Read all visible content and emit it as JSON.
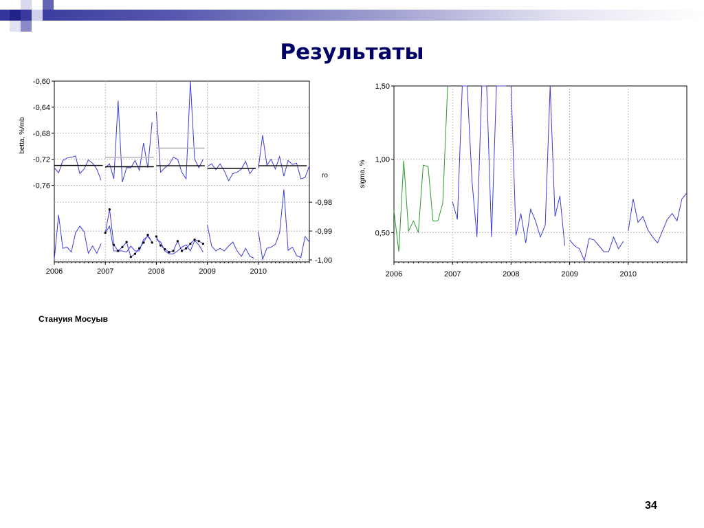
{
  "slide": {
    "title": "Результаты",
    "caption": "Стануия Мосуыв",
    "page_number": "34"
  },
  "colors": {
    "title": "#000066",
    "blue_series": "#3b3bd6",
    "green_series": "#2a9a2a",
    "black_segments": "#000000",
    "gray_segments": "#b0b0b0",
    "header": "#34349a"
  },
  "chart_data": [
    {
      "type": "line",
      "ylabel_top": "betta, %/mb",
      "ylabel_bottom": "ro",
      "x_tick_labels": [
        "2006",
        "2007",
        "2008",
        "2009",
        "2010"
      ],
      "xlim": [
        2006,
        2011
      ],
      "betta_ylim": [
        -0.77,
        -0.6
      ],
      "betta_yticks": [
        "-0,60",
        "-0,64",
        "-0,68",
        "-0,72",
        "-0,76"
      ],
      "betta_ytick_values": [
        -0.6,
        -0.64,
        -0.68,
        -0.72,
        -0.76
      ],
      "ro_ylim": [
        -1.0,
        -0.9752
      ],
      "ro_yticks": [
        "-0,98",
        "-0,99",
        "-1,00"
      ],
      "ro_ytick_values": [
        -0.98,
        -0.99,
        -1.0
      ],
      "grid": true,
      "series": [
        {
          "role": "betta",
          "style": "blue",
          "segments": [
            {
              "x": [
                2006.0,
                2006.083,
                2006.167,
                2006.25,
                2006.333,
                2006.417,
                2006.5,
                2006.583,
                2006.667,
                2006.75,
                2006.833,
                2006.917
              ],
              "y": [
                -0.733,
                -0.741,
                -0.722,
                -0.718,
                -0.717,
                -0.715,
                -0.742,
                -0.735,
                -0.721,
                -0.726,
                -0.735,
                -0.752
              ]
            },
            {
              "x": [
                2007.0,
                2007.083,
                2007.167,
                2007.25,
                2007.333,
                2007.417,
                2007.5,
                2007.583,
                2007.667,
                2007.75,
                2007.833,
                2007.917
              ],
              "y": [
                -0.733,
                -0.727,
                -0.75,
                -0.63,
                -0.755,
                -0.733,
                -0.733,
                -0.722,
                -0.737,
                -0.695,
                -0.733,
                -0.663
              ]
            },
            {
              "x": [
                2008.0,
                2008.083,
                2008.167,
                2008.25,
                2008.333,
                2008.417,
                2008.5,
                2008.583,
                2008.667,
                2008.75,
                2008.833,
                2008.917
              ],
              "y": [
                -0.647,
                -0.74,
                -0.733,
                -0.728,
                -0.717,
                -0.72,
                -0.74,
                -0.75,
                -0.6,
                -0.72,
                -0.733,
                -0.72
              ]
            },
            {
              "x": [
                2009.0,
                2009.083,
                2009.167,
                2009.25,
                2009.333,
                2009.417,
                2009.5,
                2009.583,
                2009.667,
                2009.75,
                2009.833,
                2009.917
              ],
              "y": [
                -0.731,
                -0.727,
                -0.736,
                -0.727,
                -0.738,
                -0.753,
                -0.742,
                -0.74,
                -0.735,
                -0.723,
                -0.742,
                -0.733
              ]
            },
            {
              "x": [
                2010.0,
                2010.083,
                2010.167,
                2010.25,
                2010.333,
                2010.417,
                2010.5,
                2010.583,
                2010.667,
                2010.75,
                2010.833,
                2010.917,
                2011.0
              ],
              "y": [
                -0.734,
                -0.683,
                -0.729,
                -0.72,
                -0.735,
                -0.716,
                -0.746,
                -0.722,
                -0.728,
                -0.726,
                -0.75,
                -0.748,
                -0.73
              ]
            }
          ]
        },
        {
          "role": "betta",
          "style": "black-level",
          "segments": [
            {
              "x": [
                2006.0,
                2006.95
              ],
              "y": [
                -0.7295,
                -0.7295
              ]
            },
            {
              "x": [
                2007.0,
                2007.95
              ],
              "y": [
                -0.7315,
                -0.7315
              ]
            },
            {
              "x": [
                2008.0,
                2008.95
              ],
              "y": [
                -0.73,
                -0.73
              ]
            },
            {
              "x": [
                2009.0,
                2009.95
              ],
              "y": [
                -0.734,
                -0.734
              ]
            },
            {
              "x": [
                2010.0,
                2010.95
              ],
              "y": [
                -0.73,
                -0.73
              ]
            }
          ]
        },
        {
          "role": "betta",
          "style": "gray-level",
          "segments": [
            {
              "x": [
                2007.0,
                2007.95
              ],
              "y": [
                -0.717,
                -0.717
              ]
            },
            {
              "x": [
                2008.0,
                2008.95
              ],
              "y": [
                -0.703,
                -0.703
              ]
            }
          ]
        },
        {
          "role": "ro",
          "style": "blue",
          "segments": [
            {
              "x": [
                2006.0,
                2006.083,
                2006.167,
                2006.25,
                2006.333,
                2006.417,
                2006.5,
                2006.583,
                2006.667,
                2006.75,
                2006.833,
                2006.917
              ],
              "y": [
                -0.9998,
                -0.9844,
                -0.996,
                -0.9956,
                -0.9973,
                -0.9906,
                -0.9883,
                -0.9902,
                -0.9977,
                -0.9952,
                -0.9977,
                -0.9944
              ]
            },
            {
              "x": [
                2007.0,
                2007.083,
                2007.167,
                2007.25,
                2007.333,
                2007.417,
                2007.5,
                2007.583,
                2007.667,
                2007.75,
                2007.833,
                2007.917
              ],
              "y": [
                -0.9906,
                -0.9883,
                -0.9969,
                -0.9969,
                -0.9969,
                -0.9973,
                -0.9952,
                -0.9969,
                -0.9969,
                -0.9929,
                -0.9919,
                -0.9938
              ]
            },
            {
              "x": [
                2008.0,
                2008.083,
                2008.167,
                2008.25,
                2008.333,
                2008.417,
                2008.5,
                2008.583,
                2008.667,
                2008.75,
                2008.833,
                2008.917
              ],
              "y": [
                -0.9929,
                -0.9938,
                -0.9969,
                -0.9979,
                -0.9979,
                -0.9969,
                -0.9956,
                -0.9948,
                -0.9969,
                -0.9933,
                -0.9948,
                -0.9973
              ]
            },
            {
              "x": [
                2009.0,
                2009.083,
                2009.167,
                2009.25,
                2009.333,
                2009.417,
                2009.5,
                2009.583,
                2009.667,
                2009.75,
                2009.833,
                2009.917
              ],
              "y": [
                -0.9879,
                -0.9952,
                -0.9969,
                -0.996,
                -0.9969,
                -0.9952,
                -0.9938,
                -0.9969,
                -0.9988,
                -0.996,
                -0.9988,
                -0.9994
              ]
            },
            {
              "x": [
                2010.0,
                2010.083,
                2010.167,
                2010.25,
                2010.333,
                2010.417,
                2010.5,
                2010.583,
                2010.667,
                2010.75,
                2010.833,
                2010.917,
                2011.0
              ],
              "y": [
                -0.9902,
                -0.9998,
                -0.996,
                -0.9956,
                -0.9946,
                -0.9906,
                -0.9756,
                -0.9967,
                -0.9956,
                -0.9985,
                -0.9992,
                -0.9919,
                -0.9938
              ]
            }
          ]
        },
        {
          "role": "ro",
          "style": "black-dots",
          "segments": [
            {
              "x": [
                2007.0,
                2007.083,
                2007.167,
                2007.25,
                2007.333,
                2007.417,
                2007.5,
                2007.583,
                2007.667,
                2007.75,
                2007.833,
                2007.917
              ],
              "y": [
                -0.9906,
                -0.9825,
                -0.9948,
                -0.9969,
                -0.9956,
                -0.9938,
                -0.999,
                -0.9979,
                -0.996,
                -0.994,
                -0.9913,
                -0.994
              ]
            },
            {
              "x": [
                2008.0,
                2008.083,
                2008.167,
                2008.25,
                2008.333,
                2008.417,
                2008.5,
                2008.583,
                2008.667,
                2008.75,
                2008.833,
                2008.917
              ],
              "y": [
                -0.9919,
                -0.995,
                -0.9963,
                -0.9973,
                -0.9969,
                -0.9935,
                -0.9969,
                -0.996,
                -0.9944,
                -0.993,
                -0.9935,
                -0.9944
              ]
            }
          ]
        }
      ]
    },
    {
      "type": "line",
      "ylabel": "sigma, %",
      "x_tick_labels": [
        "2006",
        "2007",
        "2008",
        "2009",
        "2010"
      ],
      "xlim": [
        2006,
        2011
      ],
      "ylim": [
        0.3,
        1.5
      ],
      "yticks": [
        "1,50",
        "1,00",
        "0,50"
      ],
      "ytick_values": [
        1.5,
        1.0,
        0.5
      ],
      "grid": true,
      "series": [
        {
          "style": "green",
          "segments": [
            {
              "x": [
                2006.0,
                2006.083,
                2006.167,
                2006.25,
                2006.333,
                2006.417,
                2006.5,
                2006.583,
                2006.667,
                2006.75,
                2006.833,
                2006.917
              ],
              "y": [
                0.65,
                0.37,
                0.99,
                0.51,
                0.58,
                0.5,
                0.96,
                0.95,
                0.58,
                0.58,
                0.7,
                1.55
              ]
            }
          ]
        },
        {
          "style": "blue",
          "segments": [
            {
              "x": [
                2007.0,
                2007.083,
                2007.167,
                2007.25,
                2007.333,
                2007.417,
                2007.5,
                2007.583,
                2007.667,
                2007.75,
                2007.833,
                2007.917
              ],
              "y": [
                0.71,
                0.59,
                1.55,
                1.55,
                0.85,
                0.47,
                1.55,
                1.55,
                0.47,
                1.55,
                1.55,
                1.55
              ]
            },
            {
              "x": [
                2008.0,
                2008.083,
                2008.167,
                2008.25,
                2008.333,
                2008.417,
                2008.5,
                2008.583,
                2008.667,
                2008.75,
                2008.833,
                2008.917
              ],
              "y": [
                1.55,
                0.48,
                0.63,
                0.43,
                0.66,
                0.58,
                0.47,
                0.55,
                1.55,
                0.61,
                0.75,
                0.41
              ]
            },
            {
              "x": [
                2009.0,
                2009.083,
                2009.167,
                2009.25,
                2009.333,
                2009.417,
                2009.5,
                2009.583,
                2009.667,
                2009.75,
                2009.833,
                2009.917
              ],
              "y": [
                0.45,
                0.41,
                0.39,
                0.31,
                0.46,
                0.45,
                0.41,
                0.37,
                0.37,
                0.47,
                0.39,
                0.44
              ]
            },
            {
              "x": [
                2010.0,
                2010.083,
                2010.167,
                2010.25,
                2010.333,
                2010.417,
                2010.5,
                2010.583,
                2010.667,
                2010.75,
                2010.833,
                2010.917,
                2011.0
              ],
              "y": [
                0.51,
                0.73,
                0.57,
                0.61,
                0.52,
                0.47,
                0.43,
                0.51,
                0.59,
                0.63,
                0.58,
                0.73,
                0.77
              ]
            }
          ]
        }
      ]
    }
  ]
}
